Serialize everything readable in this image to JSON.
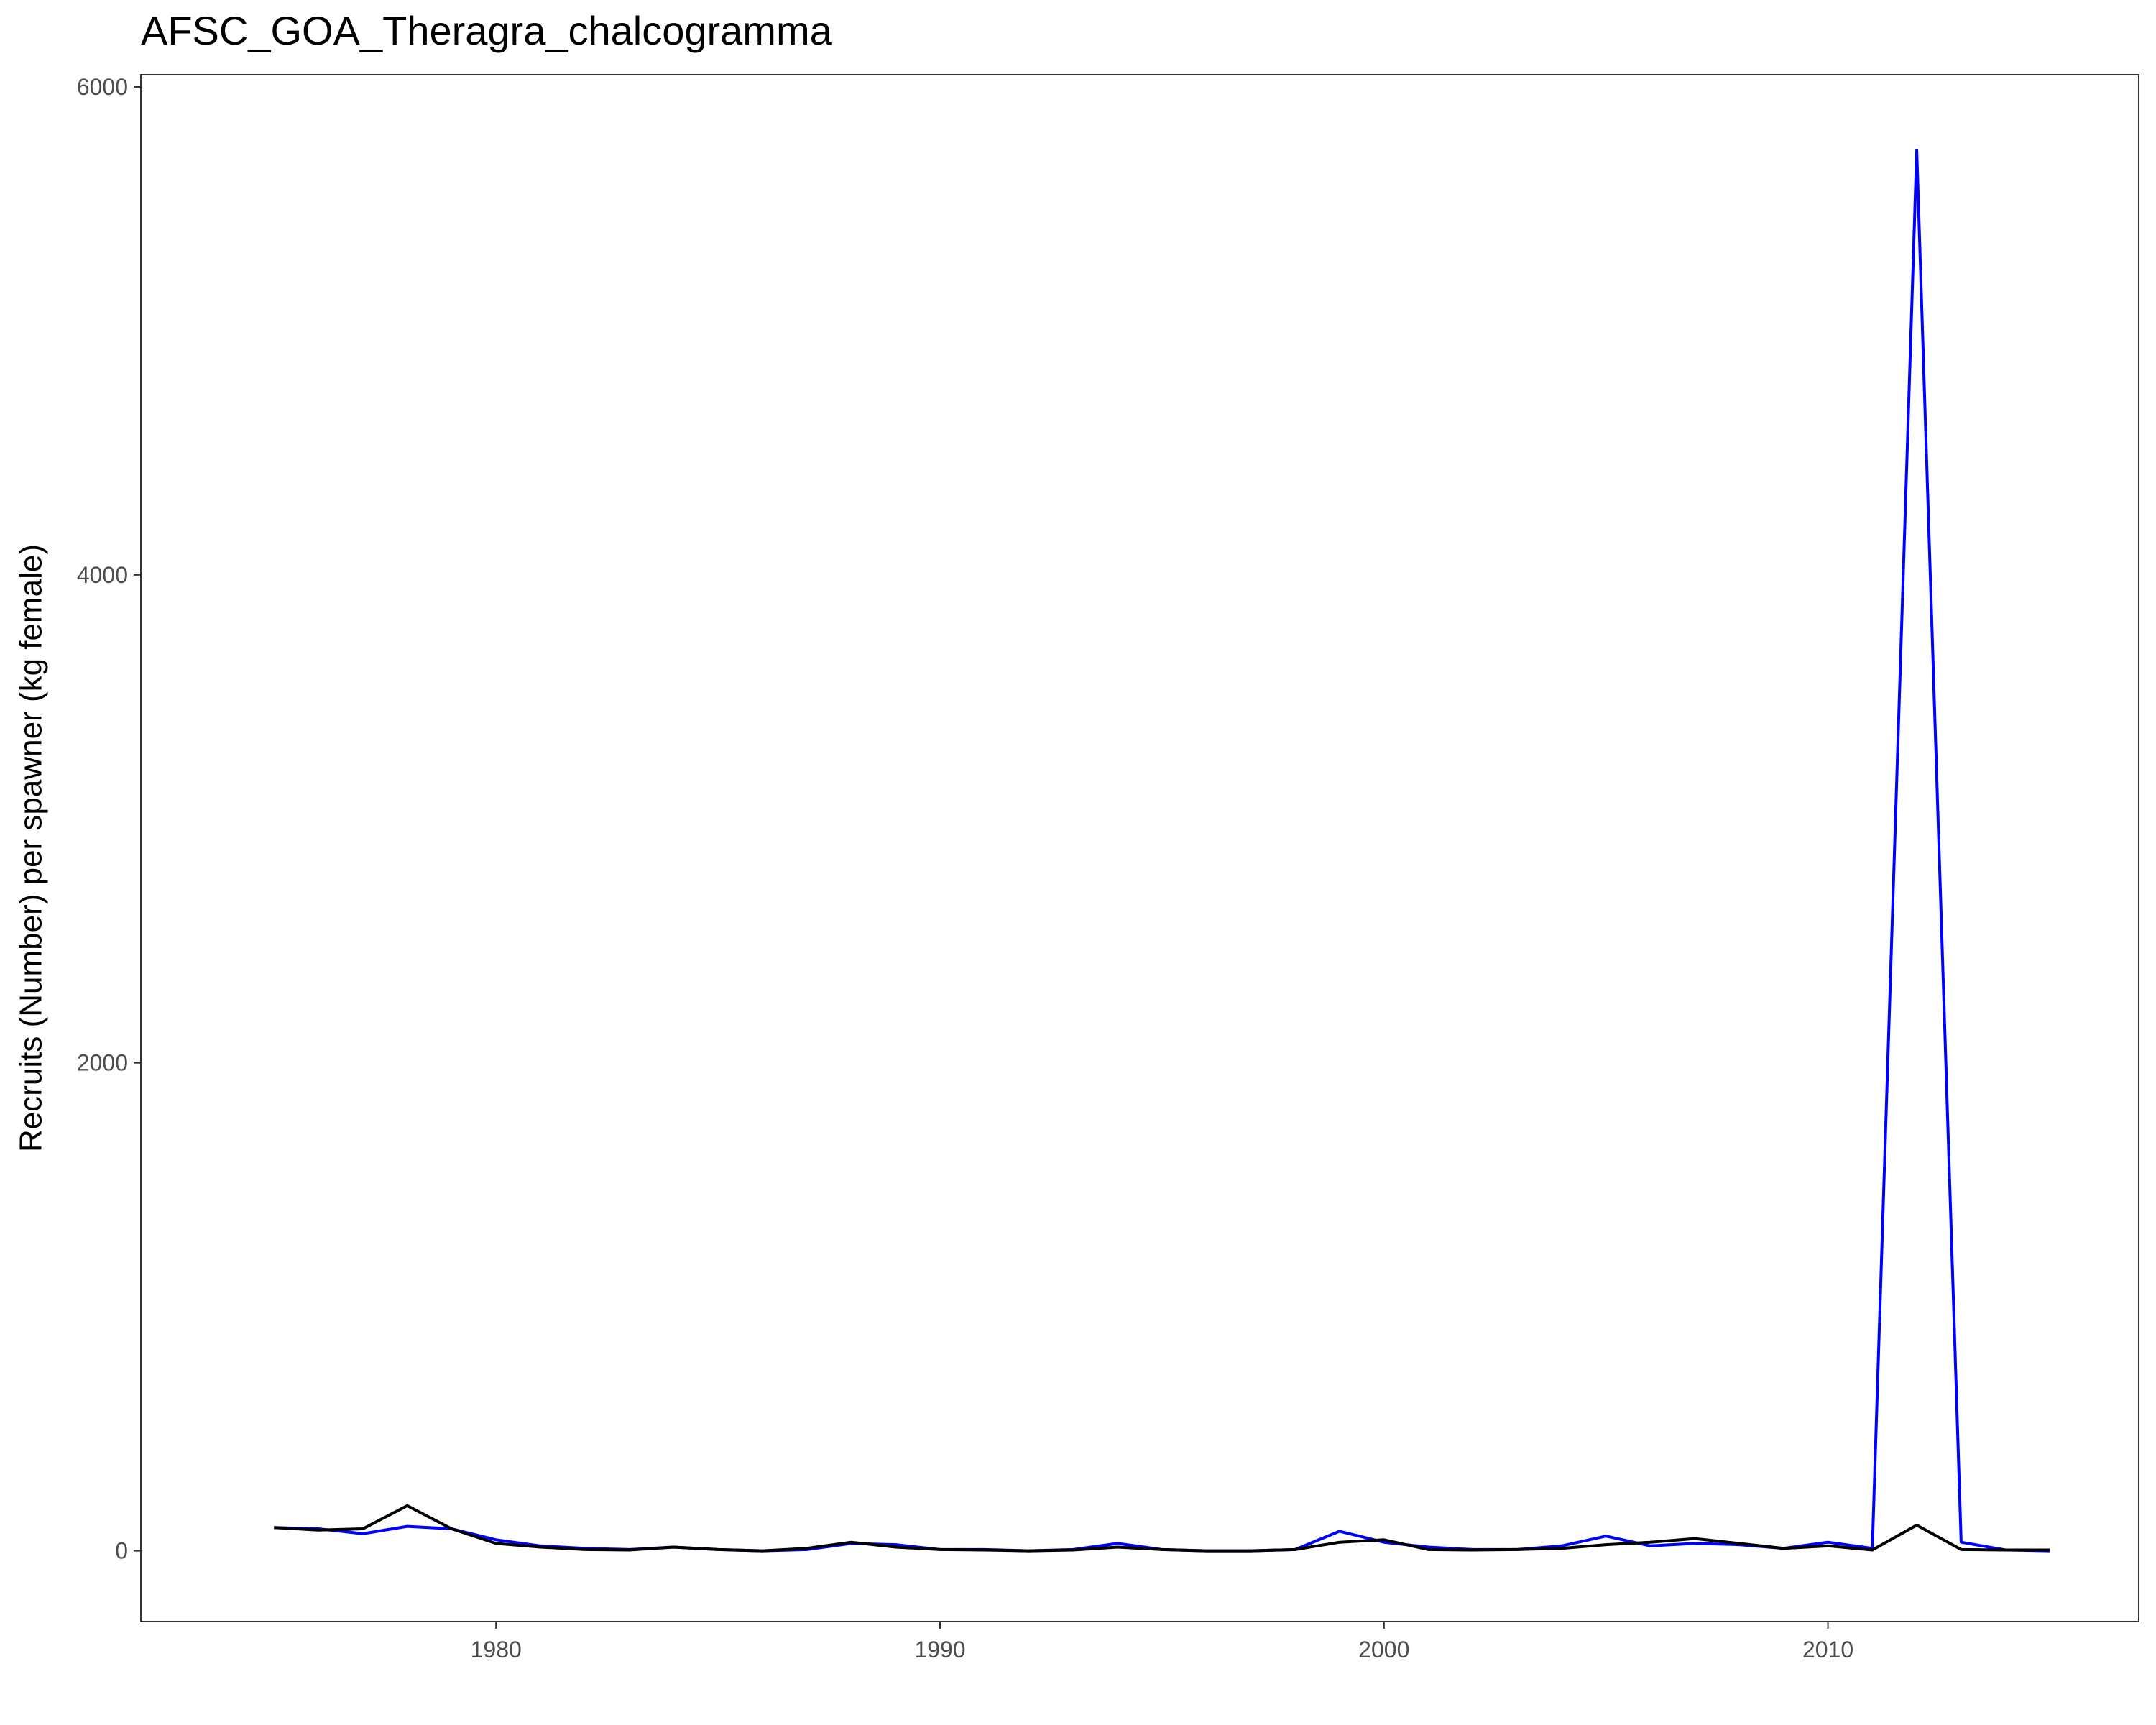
{
  "chart_data": {
    "type": "line",
    "title": "AFSC_GOA_Theragra_chalcogramma",
    "xlabel": "",
    "ylabel": "Recruits (Number) per spawner (kg female)",
    "xlim": [
      1972.0,
      2017.0
    ],
    "ylim": [
      -290,
      6050
    ],
    "x_ticks": [
      1980,
      1990,
      2000,
      2010
    ],
    "y_ticks": [
      0,
      2000,
      4000,
      6000
    ],
    "grid": false,
    "legend": "none",
    "series": [
      {
        "color": "#0000ff",
        "x": [
          1975,
          1976,
          1977,
          1978,
          1979,
          1980,
          1981,
          1982,
          1983,
          1984,
          1985,
          1986,
          1987,
          1988,
          1989,
          1990,
          1991,
          1992,
          1993,
          1994,
          1995,
          1996,
          1997,
          1998,
          1999,
          2000,
          2001,
          2002,
          2003,
          2004,
          2005,
          2006,
          2007,
          2008,
          2009,
          2010,
          2011,
          2012,
          2013,
          2014,
          2015
        ],
        "y": [
          95,
          90,
          70,
          100,
          90,
          45,
          20,
          10,
          5,
          15,
          5,
          0,
          5,
          30,
          25,
          5,
          5,
          0,
          5,
          30,
          5,
          0,
          0,
          5,
          80,
          35,
          15,
          5,
          5,
          20,
          60,
          20,
          30,
          25,
          10,
          35,
          10,
          5740,
          35,
          3,
          0
        ]
      },
      {
        "color": "#000000",
        "x": [
          1975,
          1976,
          1977,
          1978,
          1979,
          1980,
          1981,
          1982,
          1983,
          1984,
          1985,
          1986,
          1987,
          1988,
          1989,
          1990,
          1991,
          1992,
          1993,
          1994,
          1995,
          1996,
          1997,
          1998,
          1999,
          2000,
          2001,
          2002,
          2003,
          2004,
          2005,
          2006,
          2007,
          2008,
          2009,
          2010,
          2011,
          2012,
          2013,
          2014,
          2015
        ],
        "y": [
          95,
          85,
          90,
          185,
          90,
          30,
          15,
          5,
          3,
          15,
          5,
          0,
          10,
          35,
          15,
          5,
          3,
          0,
          3,
          15,
          5,
          0,
          0,
          5,
          35,
          45,
          5,
          3,
          5,
          10,
          25,
          35,
          50,
          30,
          10,
          20,
          3,
          105,
          5,
          3,
          3
        ]
      }
    ]
  }
}
